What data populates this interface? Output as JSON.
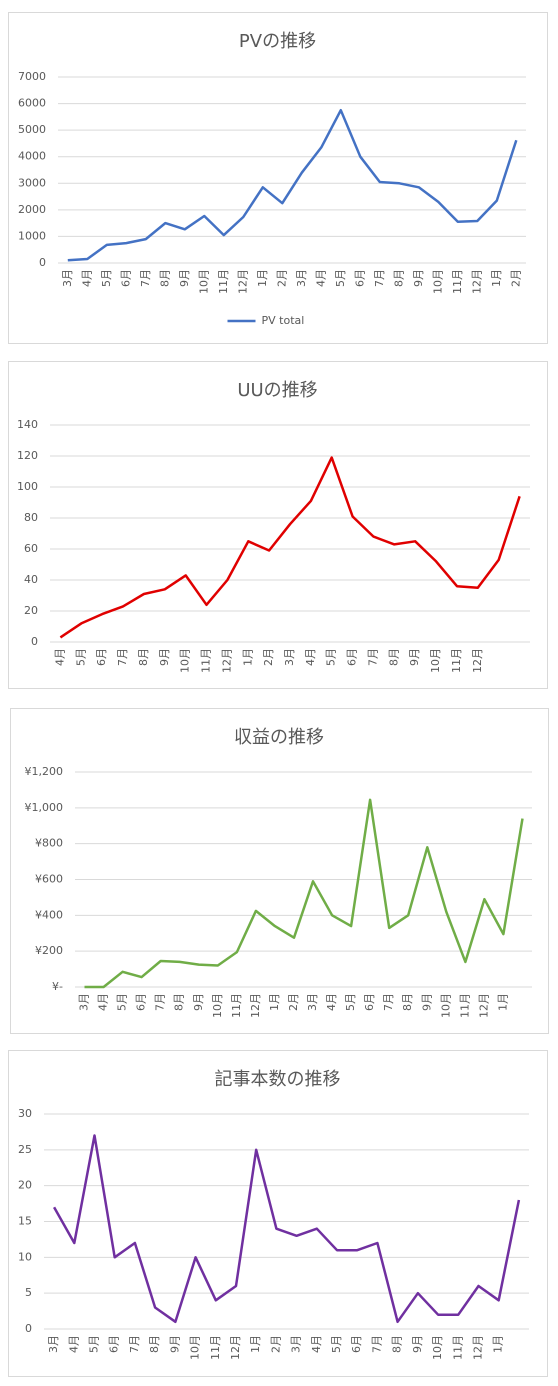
{
  "chart_data": [
    {
      "type": "line",
      "title": "PVの推移",
      "categories": [
        "3月",
        "4月",
        "5月",
        "6月",
        "7月",
        "8月",
        "9月",
        "10月",
        "11月",
        "12月",
        "1月",
        "2月",
        "3月",
        "4月",
        "5月",
        "6月",
        "7月",
        "8月",
        "9月",
        "10月",
        "11月",
        "12月",
        "1月",
        "2月"
      ],
      "series": [
        {
          "name": "PV total",
          "color": "#4472c4",
          "values": [
            100,
            150,
            680,
            750,
            900,
            1500,
            1270,
            1770,
            1050,
            1730,
            2850,
            2250,
            3400,
            4350,
            5750,
            4000,
            3050,
            3000,
            2850,
            2300,
            1550,
            1580,
            2350,
            4620
          ]
        }
      ],
      "ylim": [
        0,
        7000
      ],
      "yticks": [
        0,
        1000,
        2000,
        3000,
        4000,
        5000,
        6000,
        7000
      ],
      "grid": true,
      "legend": "bottom"
    },
    {
      "type": "line",
      "title": "UUの推移",
      "categories": [
        "4月",
        "5月",
        "6月",
        "7月",
        "8月",
        "9月",
        "10月",
        "11月",
        "12月",
        "1月",
        "2月",
        "3月",
        "4月",
        "5月",
        "6月",
        "7月",
        "8月",
        "9月",
        "10月",
        "11月",
        "12月",
        null,
        null
      ],
      "values": [
        3,
        12,
        18,
        23,
        31,
        34,
        43,
        24,
        40,
        65,
        59,
        76,
        91,
        119,
        81,
        68,
        63,
        65,
        52,
        36,
        35,
        53,
        94
      ],
      "color": "#e00000",
      "ylim": [
        0,
        140
      ],
      "yticks": [
        0,
        20,
        40,
        60,
        80,
        100,
        120,
        140
      ],
      "grid": true
    },
    {
      "type": "line",
      "title": "収益の推移",
      "categories": [
        "3月",
        "4月",
        "5月",
        "6月",
        "7月",
        "8月",
        "9月",
        "10月",
        "11月",
        "12月",
        "1月",
        "2月",
        "3月",
        "4月",
        "5月",
        "6月",
        "7月",
        "8月",
        "9月",
        "10月",
        "11月",
        "12月",
        "1月",
        null
      ],
      "values": [
        0,
        0,
        85,
        55,
        145,
        140,
        125,
        120,
        195,
        425,
        340,
        275,
        590,
        400,
        340,
        1045,
        330,
        400,
        780,
        420,
        140,
        490,
        295,
        940
      ],
      "color": "#70ad47",
      "ylim": [
        0,
        1200
      ],
      "yticks": [
        {
          "value": 0,
          "label": "¥-"
        },
        {
          "value": 200,
          "label": "¥200"
        },
        {
          "value": 400,
          "label": "¥400"
        },
        {
          "value": 600,
          "label": "¥600"
        },
        {
          "value": 800,
          "label": "¥800"
        },
        {
          "value": 1000,
          "label": "¥1,000"
        },
        {
          "value": 1200,
          "label": "¥1,200"
        }
      ],
      "grid": true
    },
    {
      "type": "line",
      "title": "記事本数の推移",
      "categories": [
        "3月",
        "4月",
        "5月",
        "6月",
        "7月",
        "8月",
        "9月",
        "10月",
        "11月",
        "12月",
        "1月",
        "2月",
        "3月",
        "4月",
        "5月",
        "6月",
        "7月",
        "8月",
        "9月",
        "10月",
        "11月",
        "12月",
        "1月",
        null
      ],
      "values": [
        17,
        12,
        27,
        10,
        12,
        3,
        1,
        10,
        4,
        6,
        25,
        14,
        13,
        14,
        11,
        11,
        12,
        1,
        5,
        2,
        2,
        6,
        4,
        18
      ],
      "color": "#7030a0",
      "ylim": [
        0,
        30
      ],
      "yticks": [
        0,
        5,
        10,
        15,
        20,
        25,
        30
      ],
      "grid": true
    }
  ]
}
